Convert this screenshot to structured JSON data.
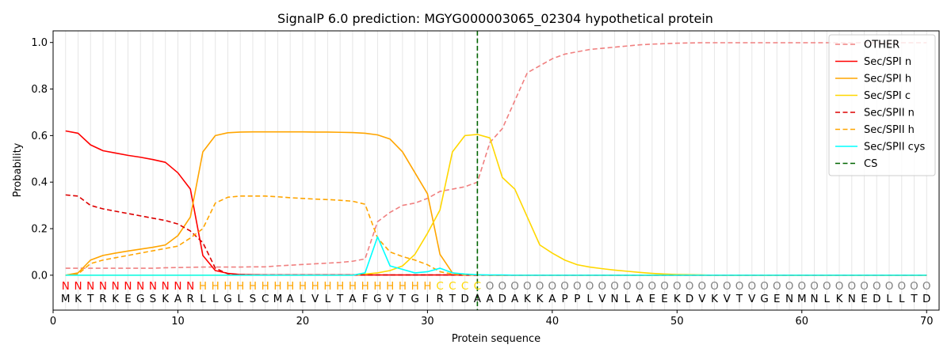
{
  "chart_data": {
    "type": "line",
    "title": "SignalP 6.0 prediction: MGYG000003065_02304 hypothetical protein",
    "xlabel": "Protein sequence",
    "ylabel": "Probability",
    "xlim": [
      0,
      71
    ],
    "ylim": [
      -0.15,
      1.05
    ],
    "xticks": [
      0,
      10,
      20,
      30,
      40,
      50,
      60,
      70
    ],
    "yticks": [
      0.0,
      0.2,
      0.4,
      0.6,
      0.8,
      1.0
    ],
    "ytick_labels": [
      "0.0",
      "0.2",
      "0.4",
      "0.6",
      "0.8",
      "1.0"
    ],
    "legend_position": "top-right",
    "grid": "vertical lines at each residue",
    "sequence": [
      "M",
      "K",
      "T",
      "R",
      "K",
      "E",
      "G",
      "S",
      "K",
      "A",
      "R",
      "L",
      "L",
      "G",
      "L",
      "S",
      "C",
      "M",
      "A",
      "L",
      "V",
      "L",
      "T",
      "A",
      "F",
      "G",
      "V",
      "T",
      "G",
      "I",
      "R",
      "T",
      "D",
      "A",
      "A",
      "D",
      "A",
      "K",
      "K",
      "A",
      "P",
      "P",
      "L",
      "V",
      "N",
      "L",
      "A",
      "E",
      "E",
      "K",
      "D",
      "V",
      "K",
      "V",
      "T",
      "V",
      "G",
      "E",
      "N",
      "M",
      "N",
      "L",
      "K",
      "N",
      "E",
      "D",
      "L",
      "L",
      "T",
      "D"
    ],
    "region_labels": [
      "N",
      "N",
      "N",
      "N",
      "N",
      "N",
      "N",
      "N",
      "N",
      "N",
      "N",
      "H",
      "H",
      "H",
      "H",
      "H",
      "H",
      "H",
      "H",
      "H",
      "H",
      "H",
      "H",
      "H",
      "H",
      "H",
      "H",
      "H",
      "H",
      "H",
      "C",
      "C",
      "C",
      "C",
      "O",
      "O",
      "O",
      "O",
      "O",
      "O",
      "O",
      "O",
      "O",
      "O",
      "O",
      "O",
      "O",
      "O",
      "O",
      "O",
      "O",
      "O",
      "O",
      "O",
      "O",
      "O",
      "O",
      "O",
      "O",
      "O",
      "O",
      "O",
      "O",
      "O",
      "O",
      "O",
      "O",
      "O",
      "O",
      "O"
    ],
    "region_colors": {
      "N": "#ff0000",
      "H": "#ffa500",
      "C": "#ffd700",
      "O": "#808080"
    },
    "cs_position": 34,
    "series": [
      {
        "name": "OTHER",
        "color": "#f08080",
        "dash": "dashed",
        "values": [
          0.03,
          0.03,
          0.03,
          0.03,
          0.03,
          0.03,
          0.03,
          0.03,
          0.032,
          0.033,
          0.034,
          0.035,
          0.035,
          0.035,
          0.035,
          0.036,
          0.036,
          0.04,
          0.043,
          0.046,
          0.049,
          0.052,
          0.055,
          0.06,
          0.07,
          0.23,
          0.27,
          0.3,
          0.31,
          0.33,
          0.36,
          0.37,
          0.38,
          0.4,
          0.57,
          0.63,
          0.75,
          0.87,
          0.9,
          0.93,
          0.95,
          0.96,
          0.97,
          0.975,
          0.98,
          0.985,
          0.99,
          0.993,
          0.995,
          0.997,
          0.998,
          0.999,
          0.999,
          0.999,
          0.999,
          0.999,
          0.999,
          0.999,
          0.999,
          0.999,
          0.999,
          0.999,
          0.999,
          0.999,
          0.999,
          0.999,
          0.999,
          0.999,
          0.999,
          0.999
        ]
      },
      {
        "name": "Sec/SPI n",
        "color": "#ff0000",
        "dash": "solid",
        "values": [
          0.62,
          0.61,
          0.56,
          0.535,
          0.525,
          0.515,
          0.507,
          0.497,
          0.485,
          0.44,
          0.37,
          0.085,
          0.02,
          0.008,
          0.003,
          0.002,
          0.001,
          0.001,
          0.001,
          0.001,
          0.001,
          0.001,
          0.001,
          0.001,
          0.001,
          0.001,
          0.001,
          0.001,
          0.001,
          0.001,
          0.001,
          0.001,
          0.001,
          0.001,
          0,
          0,
          0,
          0,
          0,
          0,
          0,
          0,
          0,
          0,
          0,
          0,
          0,
          0,
          0,
          0,
          0,
          0,
          0,
          0,
          0,
          0,
          0,
          0,
          0,
          0,
          0,
          0,
          0,
          0,
          0,
          0,
          0,
          0,
          0,
          0
        ]
      },
      {
        "name": "Sec/SPI h",
        "color": "#ffa500",
        "dash": "solid",
        "values": [
          0.0,
          0.01,
          0.065,
          0.085,
          0.095,
          0.104,
          0.112,
          0.12,
          0.13,
          0.17,
          0.25,
          0.53,
          0.6,
          0.612,
          0.615,
          0.616,
          0.616,
          0.616,
          0.616,
          0.616,
          0.615,
          0.615,
          0.614,
          0.613,
          0.61,
          0.603,
          0.585,
          0.53,
          0.44,
          0.35,
          0.09,
          0.01,
          0.003,
          0.001,
          0,
          0,
          0,
          0,
          0,
          0,
          0,
          0,
          0,
          0,
          0,
          0,
          0,
          0,
          0,
          0,
          0,
          0,
          0,
          0,
          0,
          0,
          0,
          0,
          0,
          0,
          0,
          0,
          0,
          0,
          0,
          0,
          0,
          0,
          0,
          0
        ]
      },
      {
        "name": "Sec/SPI c",
        "color": "#ffd700",
        "dash": "solid",
        "values": [
          0,
          0,
          0,
          0,
          0,
          0,
          0,
          0,
          0,
          0,
          0,
          0,
          0,
          0,
          0,
          0,
          0,
          0,
          0,
          0,
          0,
          0,
          0,
          0,
          0.005,
          0.01,
          0.02,
          0.04,
          0.09,
          0.18,
          0.28,
          0.53,
          0.6,
          0.605,
          0.59,
          0.42,
          0.37,
          0.25,
          0.13,
          0.095,
          0.065,
          0.045,
          0.035,
          0.028,
          0.022,
          0.017,
          0.012,
          0.008,
          0.005,
          0.003,
          0.002,
          0.001,
          0,
          0,
          0,
          0,
          0,
          0,
          0,
          0,
          0,
          0,
          0,
          0,
          0,
          0,
          0,
          0,
          0,
          0
        ]
      },
      {
        "name": "Sec/SPII n",
        "color": "#dd0000",
        "dash": "dashed",
        "values": [
          0.345,
          0.34,
          0.3,
          0.285,
          0.275,
          0.265,
          0.255,
          0.245,
          0.235,
          0.22,
          0.19,
          0.14,
          0.03,
          0.006,
          0.003,
          0.002,
          0.001,
          0.001,
          0.001,
          0.001,
          0.001,
          0.001,
          0.001,
          0.001,
          0.001,
          0.001,
          0.001,
          0.001,
          0.001,
          0.001,
          0.001,
          0.001,
          0,
          0,
          0,
          0,
          0,
          0,
          0,
          0,
          0,
          0,
          0,
          0,
          0,
          0,
          0,
          0,
          0,
          0,
          0,
          0,
          0,
          0,
          0,
          0,
          0,
          0,
          0,
          0,
          0,
          0,
          0,
          0,
          0,
          0,
          0,
          0,
          0,
          0
        ]
      },
      {
        "name": "Sec/SPII h",
        "color": "#ffa500",
        "dash": "dashed",
        "values": [
          0.0,
          0.005,
          0.05,
          0.065,
          0.075,
          0.085,
          0.095,
          0.105,
          0.115,
          0.125,
          0.16,
          0.2,
          0.31,
          0.335,
          0.34,
          0.34,
          0.34,
          0.337,
          0.333,
          0.33,
          0.327,
          0.325,
          0.322,
          0.318,
          0.305,
          0.16,
          0.1,
          0.08,
          0.065,
          0.045,
          0.015,
          0.005,
          0.002,
          0.001,
          0,
          0,
          0,
          0,
          0,
          0,
          0,
          0,
          0,
          0,
          0,
          0,
          0,
          0,
          0,
          0,
          0,
          0,
          0,
          0,
          0,
          0,
          0,
          0,
          0,
          0,
          0,
          0,
          0,
          0,
          0,
          0,
          0,
          0,
          0,
          0
        ]
      },
      {
        "name": "Sec/SPII cys",
        "color": "#00ffff",
        "dash": "solid",
        "values": [
          0,
          0,
          0,
          0,
          0,
          0,
          0,
          0,
          0,
          0,
          0,
          0,
          0,
          0,
          0,
          0,
          0,
          0,
          0,
          0,
          0,
          0,
          0,
          0,
          0.01,
          0.165,
          0.04,
          0.025,
          0.01,
          0.015,
          0.03,
          0.01,
          0.005,
          0.002,
          0.001,
          0.001,
          0,
          0,
          0,
          0,
          0,
          0,
          0,
          0,
          0,
          0,
          0,
          0,
          0,
          0,
          0,
          0,
          0,
          0,
          0,
          0,
          0,
          0,
          0,
          0,
          0,
          0,
          0,
          0,
          0,
          0,
          0,
          0,
          0,
          0
        ]
      },
      {
        "name": "CS",
        "color": "#006400",
        "dash": "dashed",
        "type": "vline",
        "x": 34
      }
    ]
  }
}
